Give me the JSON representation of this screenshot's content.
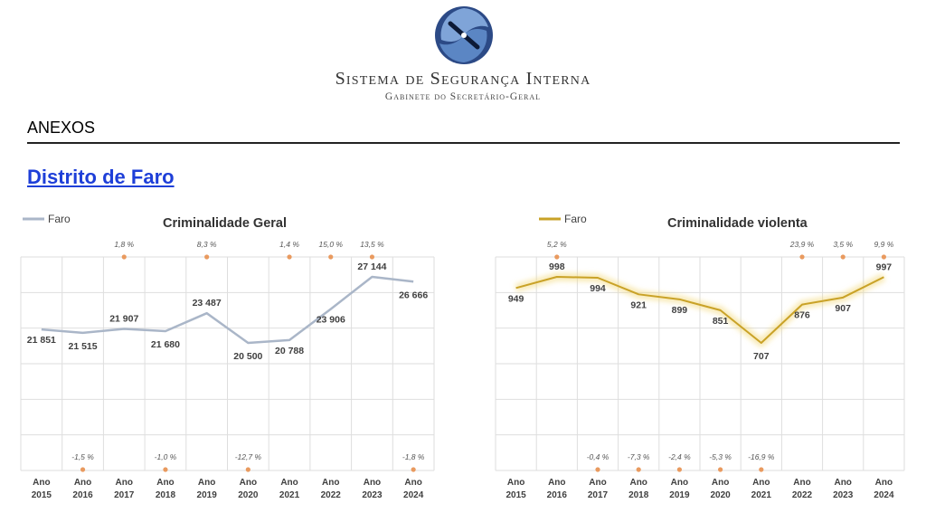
{
  "header": {
    "org_title": "Sistema de Segurança Interna",
    "org_subtitle": "Gabinete do Secretário-Geral"
  },
  "section": {
    "label": "ANEXOS"
  },
  "district": {
    "title": "Distrito de Faro"
  },
  "colors": {
    "general": "#aab6c8",
    "violent": "#c9a227",
    "pct_marker": "#e99a5f",
    "link": "#1e3fd8"
  },
  "chart_data": [
    {
      "type": "line",
      "title": "Criminalidade Geral",
      "legend": "Faro",
      "legend_position": "top-left",
      "grid": true,
      "categories": [
        "Ano 2015",
        "Ano 2016",
        "Ano 2017",
        "Ano 2018",
        "Ano 2019",
        "Ano 2020",
        "Ano 2021",
        "Ano 2022",
        "Ano 2023",
        "Ano 2024"
      ],
      "values": [
        21851,
        21515,
        21907,
        21680,
        23487,
        20500,
        20788,
        23906,
        27144,
        26666
      ],
      "value_labels": [
        "21 851",
        "21 515",
        "21 907",
        "21 680",
        "23 487",
        "20 500",
        "20 788",
        "23 906",
        "27 144",
        "26 666"
      ],
      "variation": [
        "",
        "-1,5 %",
        "1,8 %",
        "-1,0 %",
        "8,3 %",
        "-12,7 %",
        "1,4 %",
        "15,0 %",
        "13,5 %",
        "-1,8 %"
      ]
    },
    {
      "type": "line",
      "title": "Criminalidade violenta",
      "legend": "Faro",
      "legend_position": "top-left",
      "grid": true,
      "categories": [
        "Ano 2015",
        "Ano 2016",
        "Ano 2017",
        "Ano 2018",
        "Ano 2019",
        "Ano 2020",
        "Ano 2021",
        "Ano 2022",
        "Ano 2023",
        "Ano 2024"
      ],
      "values": [
        949,
        998,
        994,
        921,
        899,
        851,
        707,
        876,
        907,
        997
      ],
      "value_labels": [
        "949",
        "998",
        "994",
        "921",
        "899",
        "851",
        "707",
        "876",
        "907",
        "997"
      ],
      "variation": [
        "",
        "5,2 %",
        "-0,4 %",
        "-7,3 %",
        "-2,4 %",
        "-5,3 %",
        "-16,9 %",
        "23,9 %",
        "3,5 %",
        "9,9 %"
      ]
    }
  ]
}
